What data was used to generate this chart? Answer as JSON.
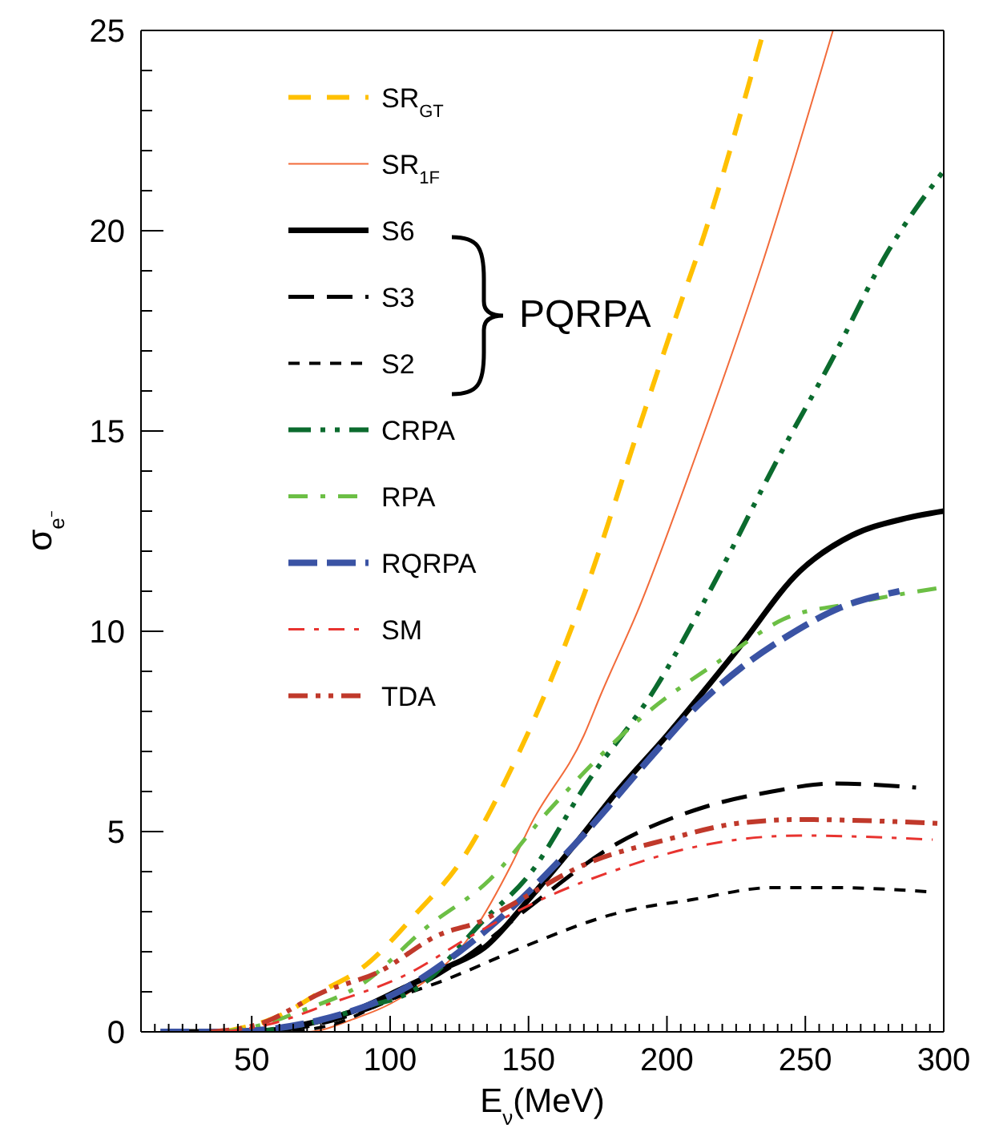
{
  "chart_data": {
    "type": "line",
    "xlabel": "E$_{ν}$(MeV)",
    "ylabel": "σ$_{e⁻}$",
    "xlim": [
      10,
      300
    ],
    "ylim": [
      0,
      25
    ],
    "xticks": [
      {
        "value": 15,
        "label": null
      },
      {
        "value": 20,
        "label": null
      },
      {
        "value": 25,
        "label": null
      },
      {
        "value": 30,
        "label": null
      },
      {
        "value": 35,
        "label": null
      },
      {
        "value": 40,
        "label": null
      },
      {
        "value": 45,
        "label": null
      },
      50,
      {
        "value": 55,
        "label": null
      },
      {
        "value": 60,
        "label": null
      },
      {
        "value": 65,
        "label": null
      },
      {
        "value": 70,
        "label": null
      },
      {
        "value": 75,
        "label": null
      },
      {
        "value": 80,
        "label": null
      },
      {
        "value": 85,
        "label": null
      },
      {
        "value": 90,
        "label": null
      },
      {
        "value": 95,
        "label": null
      },
      100,
      {
        "value": 105,
        "label": null
      },
      {
        "value": 110,
        "label": null
      },
      {
        "value": 115,
        "label": null
      },
      {
        "value": 120,
        "label": null
      },
      {
        "value": 125,
        "label": null
      },
      {
        "value": 130,
        "label": null
      },
      {
        "value": 135,
        "label": null
      },
      {
        "value": 140,
        "label": null
      },
      {
        "value": 145,
        "label": null
      },
      150,
      {
        "value": 155,
        "label": null
      },
      {
        "value": 160,
        "label": null
      },
      {
        "value": 165,
        "label": null
      },
      {
        "value": 170,
        "label": null
      },
      {
        "value": 175,
        "label": null
      },
      {
        "value": 180,
        "label": null
      },
      {
        "value": 185,
        "label": null
      },
      {
        "value": 190,
        "label": null
      },
      {
        "value": 195,
        "label": null
      },
      200,
      {
        "value": 205,
        "label": null
      },
      {
        "value": 210,
        "label": null
      },
      {
        "value": 215,
        "label": null
      },
      {
        "value": 220,
        "label": null
      },
      {
        "value": 225,
        "label": null
      },
      {
        "value": 230,
        "label": null
      },
      {
        "value": 235,
        "label": null
      },
      {
        "value": 240,
        "label": null
      },
      {
        "value": 245,
        "label": null
      },
      250,
      {
        "value": 255,
        "label": null
      },
      {
        "value": 260,
        "label": null
      },
      {
        "value": 265,
        "label": null
      },
      {
        "value": 270,
        "label": null
      },
      {
        "value": 275,
        "label": null
      },
      {
        "value": 280,
        "label": null
      },
      {
        "value": 285,
        "label": null
      },
      {
        "value": 290,
        "label": null
      },
      {
        "value": 295,
        "label": null
      },
      300
    ],
    "yticks": [
      0,
      {
        "value": 1,
        "label": null
      },
      {
        "value": 2,
        "label": null
      },
      {
        "value": 3,
        "label": null
      },
      {
        "value": 4,
        "label": null
      },
      5,
      {
        "value": 6,
        "label": null
      },
      {
        "value": 7,
        "label": null
      },
      {
        "value": 8,
        "label": null
      },
      {
        "value": 9,
        "label": null
      },
      10,
      {
        "value": 11,
        "label": null
      },
      {
        "value": 12,
        "label": null
      },
      {
        "value": 13,
        "label": null
      },
      {
        "value": 14,
        "label": null
      },
      15,
      {
        "value": 16,
        "label": null
      },
      {
        "value": 17,
        "label": null
      },
      {
        "value": 18,
        "label": null
      },
      {
        "value": 19,
        "label": null
      },
      20,
      {
        "value": 21,
        "label": null
      },
      {
        "value": 22,
        "label": null
      },
      {
        "value": 23,
        "label": null
      },
      {
        "value": 24,
        "label": null
      },
      25
    ],
    "legend": "top left",
    "marker": "none",
    "annotations": [
      "PQRPA"
    ],
    "series": [
      {
        "name": "SR$_{GT}$",
        "color": "#ffc000",
        "line_style": "dashed",
        "x": [
          40,
          60,
          75,
          90,
          110,
          125,
          144,
          171,
          190,
          203,
          213,
          235
        ],
        "values": [
          0,
          0.4,
          1.0,
          1.6,
          3.0,
          4.2,
          6.6,
          11.1,
          15.1,
          17.8,
          19.8,
          25
        ]
      },
      {
        "name": "SR$_{1F}$",
        "color": "#f26b3a",
        "line_style": "solid",
        "x": [
          50,
          70,
          86,
          105,
          130,
          144,
          151,
          170,
          176,
          190,
          210,
          235,
          260
        ],
        "values": [
          0,
          0,
          0.3,
          0.9,
          2.5,
          4.2,
          5.2,
          7.4,
          8.4,
          10.6,
          14.3,
          19.3,
          25
        ]
      },
      {
        "name": "S6",
        "color": "#000000",
        "line_style": "solid",
        "x": [
          20,
          50,
          70,
          86,
          105,
          120,
          134,
          150,
          167,
          182,
          200,
          225,
          248,
          267,
          285,
          300
        ],
        "values": [
          0,
          0,
          0.2,
          0.5,
          1.1,
          1.6,
          2.1,
          3.3,
          4.7,
          6.0,
          7.4,
          9.5,
          11.5,
          12.4,
          12.8,
          13.0
        ]
      },
      {
        "name": "S3",
        "color": "#000000",
        "line_style": "dashed",
        "x": [
          20,
          50,
          80,
          100,
          130,
          150,
          182,
          213,
          238,
          260,
          290
        ],
        "values": [
          0,
          0,
          0.3,
          0.8,
          2.0,
          3.1,
          4.7,
          5.6,
          6.0,
          6.2,
          6.1
        ]
      },
      {
        "name": "S2",
        "color": "#000000",
        "line_style": "dashed",
        "x": [
          20,
          60,
          80,
          100,
          120,
          144,
          151,
          184,
          209,
          238,
          260,
          294
        ],
        "values": [
          0,
          0,
          0.2,
          0.8,
          1.3,
          2.0,
          2.2,
          3.0,
          3.3,
          3.6,
          3.6,
          3.5
        ]
      },
      {
        "name": "CRPA",
        "color": "#0b6b2e",
        "line_style": "dashed",
        "x": [
          50,
          70,
          90,
          110,
          134,
          150,
          171,
          196,
          217,
          240,
          259,
          280,
          300
        ],
        "values": [
          0,
          0.2,
          0.6,
          1.1,
          2.8,
          3.9,
          6.2,
          8.6,
          11.2,
          14.3,
          16.7,
          19.5,
          21.5
        ]
      },
      {
        "name": "RPA",
        "color": "#6cbf45",
        "line_style": "dashed",
        "x": [
          40,
          55,
          67,
          90,
          113,
          136,
          157,
          190,
          222,
          242,
          267,
          300
        ],
        "values": [
          0,
          0.2,
          0.5,
          1.2,
          2.6,
          3.8,
          5.5,
          7.8,
          9.4,
          10.3,
          10.7,
          11.1
        ]
      },
      {
        "name": "RQRPA",
        "color": "#3a53a4",
        "line_style": "dashed",
        "x": [
          17,
          40,
          60,
          75,
          103,
          125,
          144,
          167,
          196,
          209,
          227,
          244,
          263,
          284
        ],
        "values": [
          0,
          0,
          0.1,
          0.3,
          1.0,
          2.0,
          3.1,
          4.7,
          7.0,
          8.0,
          9.1,
          9.9,
          10.6,
          11.0
        ]
      },
      {
        "name": "SM",
        "color": "#e8332f",
        "line_style": "dashed",
        "x": [
          40,
          57,
          78,
          105,
          132,
          161,
          180,
          209,
          248,
          296
        ],
        "values": [
          0,
          0.2,
          0.7,
          1.4,
          2.5,
          3.5,
          4.0,
          4.6,
          4.9,
          4.8
        ]
      },
      {
        "name": "TDA",
        "color": "#c0392b",
        "line_style": "dashed",
        "x": [
          35,
          53,
          76,
          96,
          117,
          134,
          142,
          171,
          200,
          225,
          248,
          300
        ],
        "values": [
          0,
          0.2,
          1.0,
          1.5,
          2.4,
          2.8,
          3.1,
          4.2,
          4.8,
          5.2,
          5.3,
          5.2
        ]
      }
    ]
  }
}
